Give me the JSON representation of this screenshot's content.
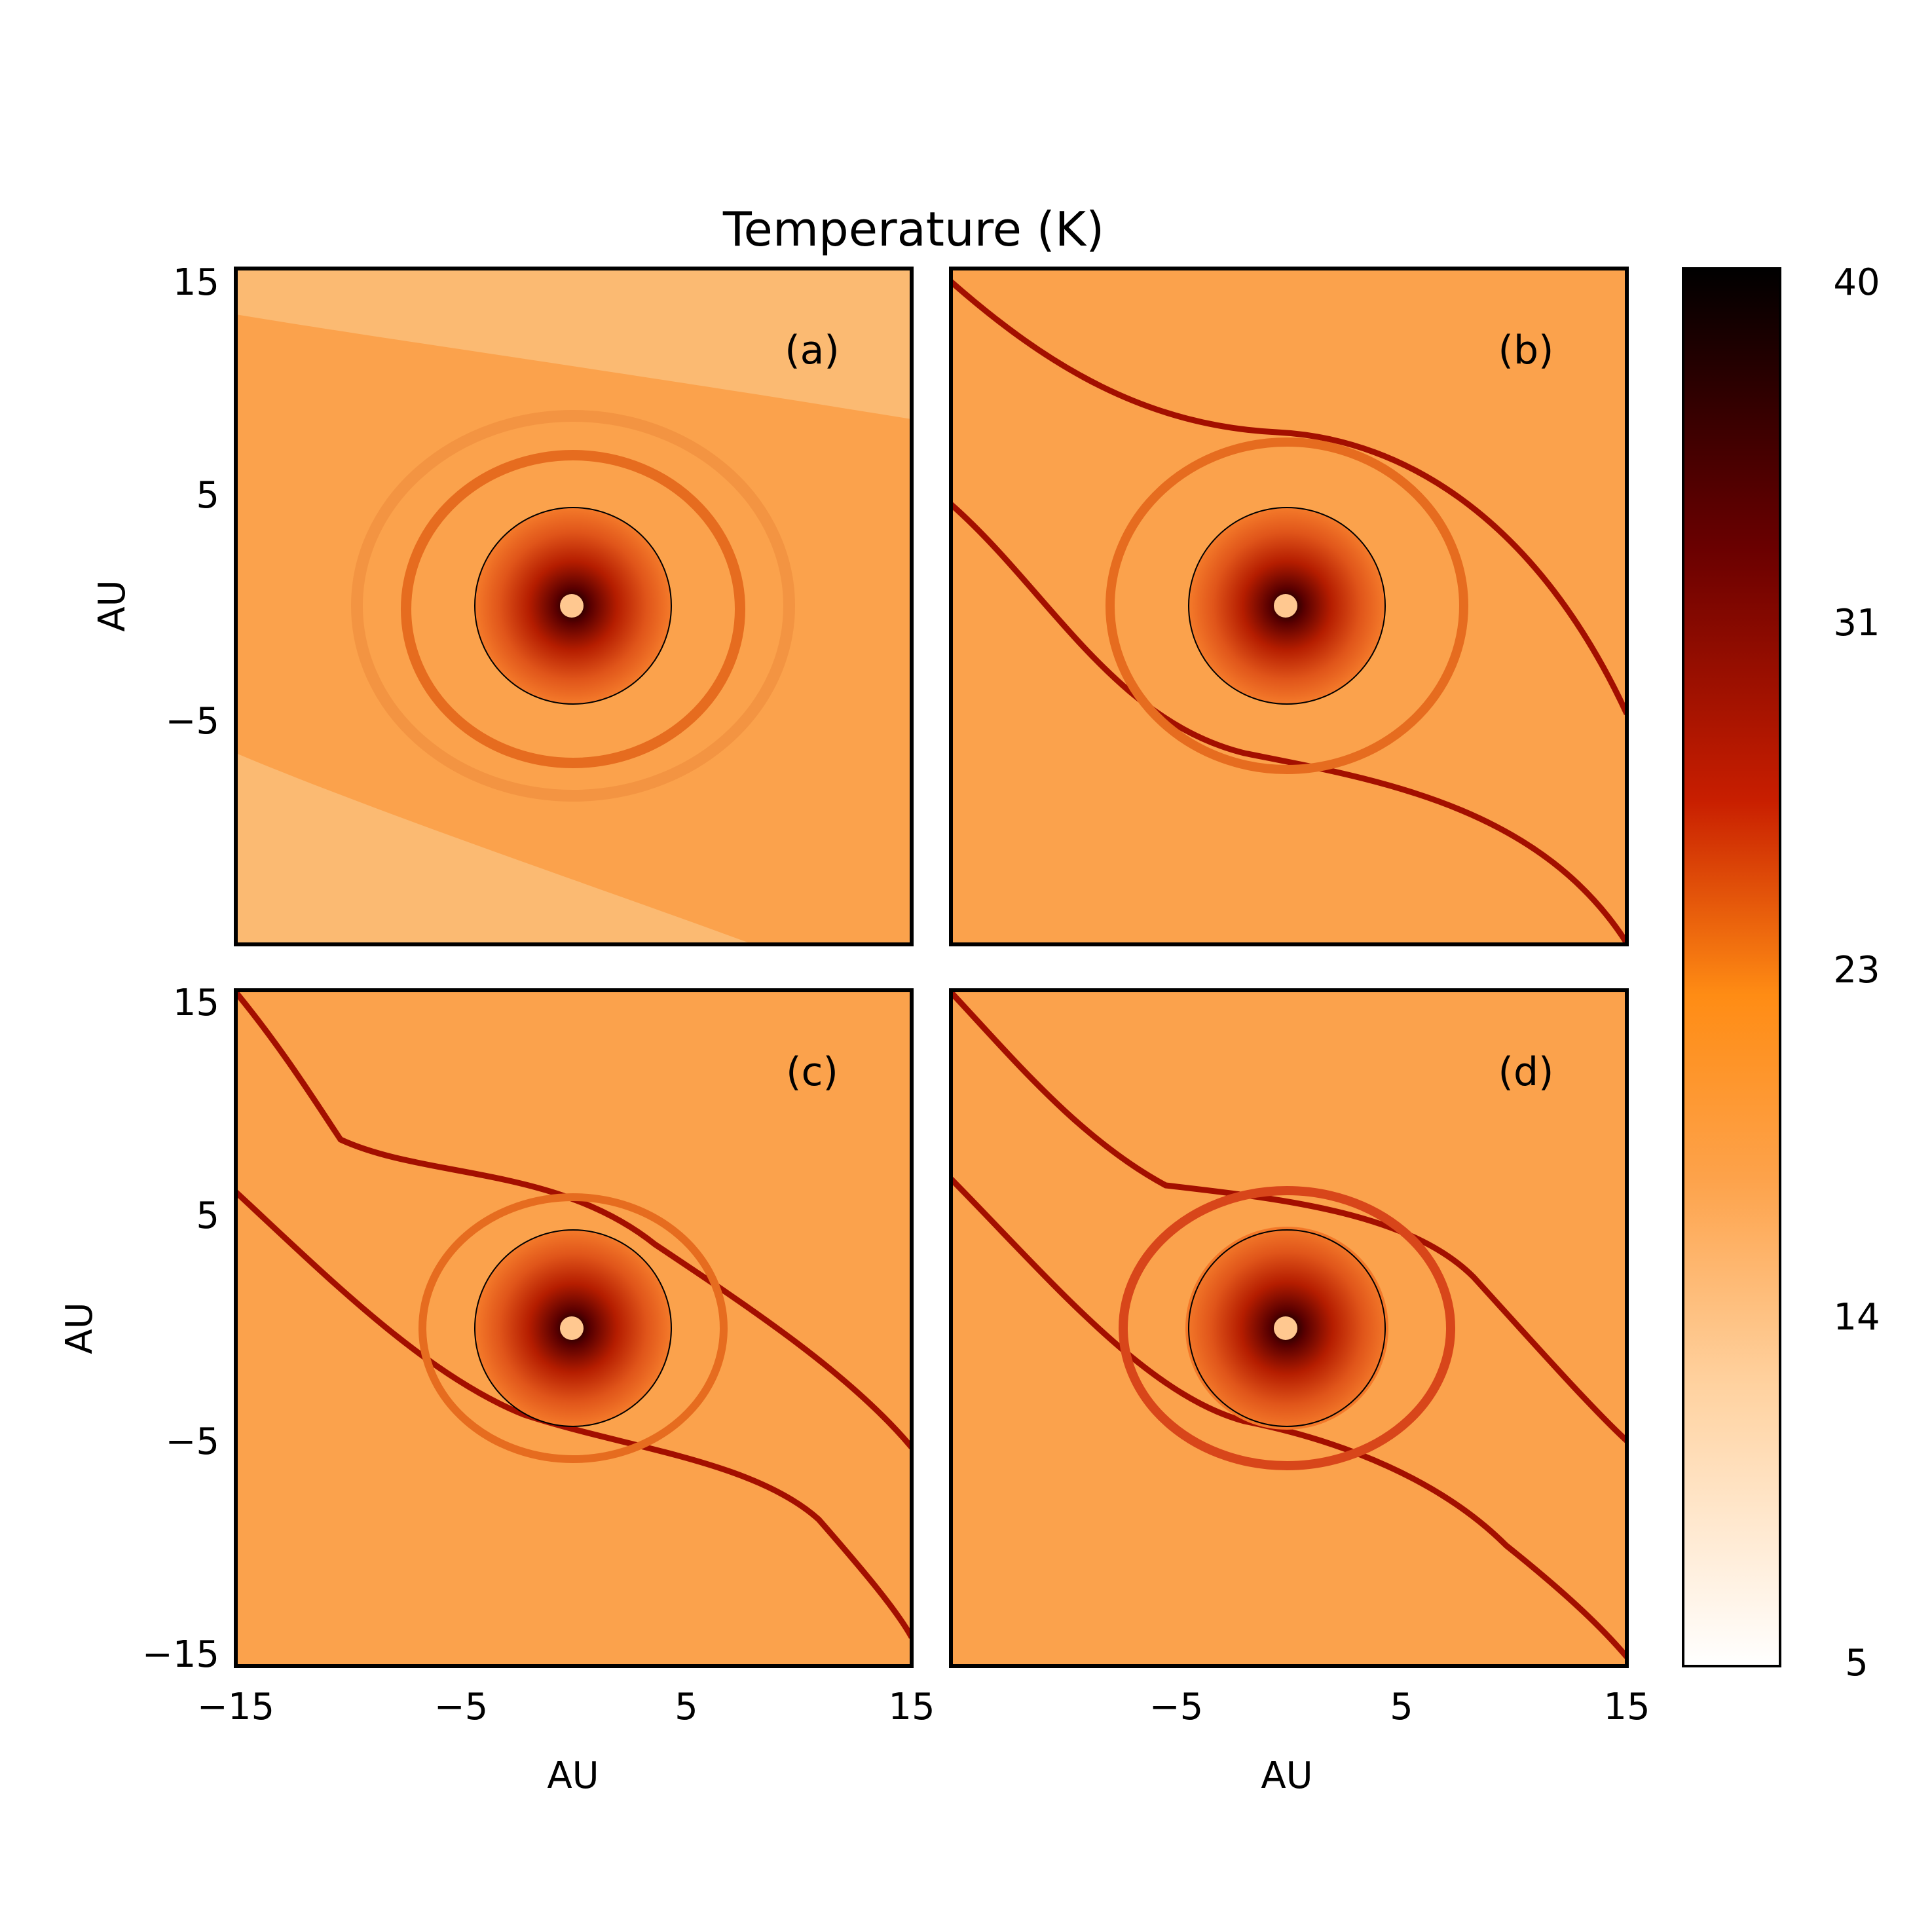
{
  "chart_data": {
    "type": "heatmap",
    "title": "Temperature (K)",
    "xlabel": "AU",
    "ylabel": "AU",
    "xlim": [
      -15,
      15
    ],
    "ylim": [
      -15,
      15
    ],
    "x_ticks": [
      "−15",
      "−5",
      "5",
      "15"
    ],
    "y_ticks_top_row": [
      "15",
      "5",
      "−5"
    ],
    "y_ticks_bottom_row": [
      "15",
      "5",
      "−5",
      "−15"
    ],
    "colorbar": {
      "range": [
        5,
        40
      ],
      "ticks": [
        "40",
        "31",
        "23",
        "14",
        "5"
      ],
      "colors": [
        "#ffffff",
        "#ffc48a",
        "#ff8c14",
        "#e05a1a",
        "#c41e00",
        "#6e0000",
        "#000000"
      ]
    },
    "panels": [
      {
        "label": "(a)",
        "background": "#fbaa55",
        "description": "spiral structure around central disc"
      },
      {
        "label": "(b)",
        "background": "#fba24c",
        "description": "diagonal filament passing through disc"
      },
      {
        "label": "(c)",
        "background": "#fba24c",
        "description": "diagonal filament passing through disc"
      },
      {
        "label": "(d)",
        "background": "#fba24c",
        "description": "diagonal filament passing through disc"
      }
    ],
    "grid": false
  }
}
